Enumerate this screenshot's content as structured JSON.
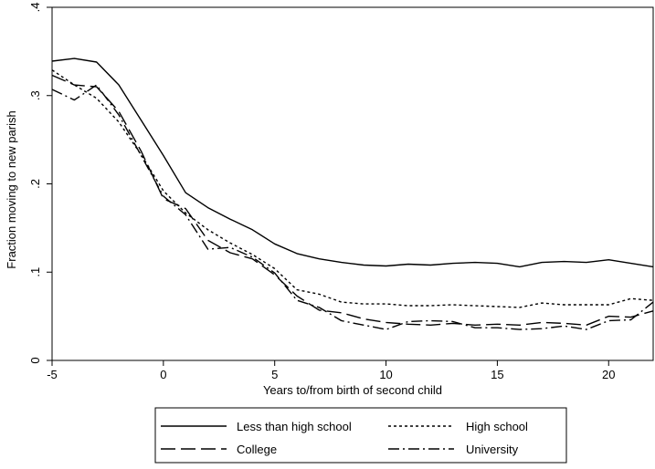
{
  "chart_data": {
    "type": "line",
    "xlabel": "Years to/from birth of second child",
    "ylabel": "Fraction moving to new parish",
    "xlim": [
      -5,
      22
    ],
    "ylim": [
      0,
      0.4
    ],
    "xticks": [
      -5,
      0,
      5,
      10,
      15,
      20
    ],
    "xtick_labels": [
      "-5",
      "0",
      "5",
      "10",
      "15",
      "20"
    ],
    "yticks": [
      0,
      0.1,
      0.2,
      0.3,
      0.4
    ],
    "ytick_labels": [
      "0",
      ".1",
      ".2",
      ".3",
      ".4"
    ],
    "grid": false,
    "legend_position": "bottom",
    "x": [
      -5,
      -4,
      -3,
      -2,
      -1,
      0,
      1,
      2,
      3,
      4,
      5,
      6,
      7,
      8,
      9,
      10,
      11,
      12,
      13,
      14,
      15,
      16,
      17,
      18,
      19,
      20,
      21,
      22
    ],
    "series": [
      {
        "name": "Less than high school",
        "style": "solid",
        "values": [
          0.339,
          0.342,
          0.338,
          0.312,
          0.272,
          0.232,
          0.19,
          0.173,
          0.16,
          0.148,
          0.132,
          0.121,
          0.115,
          0.111,
          0.108,
          0.107,
          0.109,
          0.108,
          0.11,
          0.111,
          0.11,
          0.106,
          0.111,
          0.112,
          0.111,
          0.114,
          0.11,
          0.106
        ]
      },
      {
        "name": "High school",
        "style": "dotted",
        "values": [
          0.329,
          0.312,
          0.297,
          0.27,
          0.233,
          0.192,
          0.167,
          0.148,
          0.133,
          0.12,
          0.104,
          0.08,
          0.075,
          0.066,
          0.064,
          0.064,
          0.062,
          0.062,
          0.063,
          0.062,
          0.061,
          0.06,
          0.065,
          0.063,
          0.063,
          0.063,
          0.07,
          0.068
        ]
      },
      {
        "name": "College",
        "style": "dashed",
        "values": [
          0.323,
          0.312,
          0.31,
          0.282,
          0.237,
          0.183,
          0.172,
          0.136,
          0.122,
          0.115,
          0.097,
          0.073,
          0.057,
          0.054,
          0.047,
          0.043,
          0.041,
          0.04,
          0.042,
          0.04,
          0.041,
          0.04,
          0.043,
          0.042,
          0.04,
          0.05,
          0.049,
          0.056
        ]
      },
      {
        "name": "University",
        "style": "dashdot",
        "values": [
          0.307,
          0.295,
          0.312,
          0.278,
          0.232,
          0.186,
          0.165,
          0.126,
          0.128,
          0.117,
          0.099,
          0.068,
          0.06,
          0.045,
          0.04,
          0.035,
          0.044,
          0.045,
          0.044,
          0.037,
          0.037,
          0.035,
          0.036,
          0.039,
          0.035,
          0.045,
          0.046,
          0.066
        ]
      }
    ]
  }
}
